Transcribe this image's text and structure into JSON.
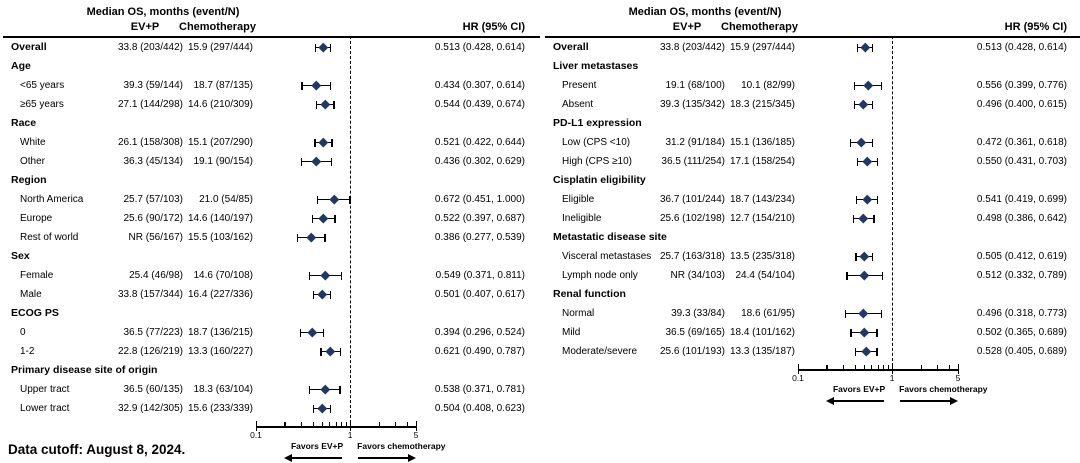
{
  "footer": "Data cutoff: August 8, 2024.",
  "columns": {
    "median_os_header": "Median OS, months (event/N)",
    "evp": "EV+P",
    "chemo": "Chemotherapy",
    "hr": "HR (95% CI)"
  },
  "colors": {
    "marker": "#1f3864",
    "ci_line": "#000000",
    "reference_line": "#000000",
    "text": "#000000"
  },
  "axis": {
    "scale": "log",
    "range": [
      0.1,
      5
    ],
    "major_ticks": [
      0.1,
      1,
      5
    ],
    "tick_labels": [
      "0.1",
      "1",
      "5"
    ],
    "minor_ticks": [
      0.2,
      0.3,
      0.4,
      0.5,
      0.6,
      0.7,
      0.8,
      0.9,
      2,
      3,
      4
    ],
    "reference_value": 1,
    "favors_left": "Favors EV+P",
    "favors_right": "Favors chemotherapy"
  },
  "chart_data": [
    {
      "type": "forest",
      "panel": "left",
      "rows": [
        {
          "kind": "data",
          "bold": true,
          "label": "Overall",
          "evp": "33.8 (203/442)",
          "chemo": "15.9 (297/444)",
          "hr": 0.513,
          "lo": 0.428,
          "hi": 0.614
        },
        {
          "kind": "group",
          "label": "Age"
        },
        {
          "kind": "data",
          "label": "<65 years",
          "evp": "39.3 (59/144)",
          "chemo": "18.7 (87/135)",
          "hr": 0.434,
          "lo": 0.307,
          "hi": 0.614
        },
        {
          "kind": "data",
          "label": "≥65 years",
          "evp": "27.1 (144/298)",
          "chemo": "14.6 (210/309)",
          "hr": 0.544,
          "lo": 0.439,
          "hi": 0.674
        },
        {
          "kind": "group",
          "label": "Race"
        },
        {
          "kind": "data",
          "label": "White",
          "evp": "26.1 (158/308)",
          "chemo": "15.1 (207/290)",
          "hr": 0.521,
          "lo": 0.422,
          "hi": 0.644
        },
        {
          "kind": "data",
          "label": "Other",
          "evp": "36.3 (45/134)",
          "chemo": "19.1 (90/154)",
          "hr": 0.436,
          "lo": 0.302,
          "hi": 0.629
        },
        {
          "kind": "group",
          "label": "Region"
        },
        {
          "kind": "data",
          "label": "North America",
          "evp": "25.7 (57/103)",
          "chemo": "21.0 (54/85)",
          "hr": 0.672,
          "lo": 0.451,
          "hi": 1.0
        },
        {
          "kind": "data",
          "label": "Europe",
          "evp": "25.6 (90/172)",
          "chemo": "14.6 (140/197)",
          "hr": 0.522,
          "lo": 0.397,
          "hi": 0.687
        },
        {
          "kind": "data",
          "label": "Rest of world",
          "evp": "NR (56/167)",
          "chemo": "15.5 (103/162)",
          "hr": 0.386,
          "lo": 0.277,
          "hi": 0.539
        },
        {
          "kind": "group",
          "label": "Sex"
        },
        {
          "kind": "data",
          "label": "Female",
          "evp": "25.4 (46/98)",
          "chemo": "14.6 (70/108)",
          "hr": 0.549,
          "lo": 0.371,
          "hi": 0.811
        },
        {
          "kind": "data",
          "label": "Male",
          "evp": "33.8 (157/344)",
          "chemo": "16.4 (227/336)",
          "hr": 0.501,
          "lo": 0.407,
          "hi": 0.617
        },
        {
          "kind": "group",
          "label": "ECOG PS"
        },
        {
          "kind": "data",
          "label": "0",
          "evp": "36.5 (77/223)",
          "chemo": "18.7 (136/215)",
          "hr": 0.394,
          "lo": 0.296,
          "hi": 0.524
        },
        {
          "kind": "data",
          "label": "1-2",
          "evp": "22.8 (126/219)",
          "chemo": "13.3 (160/227)",
          "hr": 0.621,
          "lo": 0.49,
          "hi": 0.787
        },
        {
          "kind": "group",
          "label": "Primary disease site of origin"
        },
        {
          "kind": "data",
          "label": "Upper tract",
          "evp": "36.5 (60/135)",
          "chemo": "18.3 (63/104)",
          "hr": 0.538,
          "lo": 0.371,
          "hi": 0.781
        },
        {
          "kind": "data",
          "label": "Lower tract",
          "evp": "32.9 (142/305)",
          "chemo": "15.6 (233/339)",
          "hr": 0.504,
          "lo": 0.408,
          "hi": 0.623
        }
      ]
    },
    {
      "type": "forest",
      "panel": "right",
      "rows": [
        {
          "kind": "data",
          "bold": true,
          "label": "Overall",
          "evp": "33.8 (203/442)",
          "chemo": "15.9 (297/444)",
          "hr": 0.513,
          "lo": 0.428,
          "hi": 0.614
        },
        {
          "kind": "group",
          "label": "Liver metastases"
        },
        {
          "kind": "data",
          "label": "Present",
          "evp": "19.1 (68/100)",
          "chemo": "10.1 (82/99)",
          "hr": 0.556,
          "lo": 0.399,
          "hi": 0.776
        },
        {
          "kind": "data",
          "label": "Absent",
          "evp": "39.3 (135/342)",
          "chemo": "18.3 (215/345)",
          "hr": 0.496,
          "lo": 0.4,
          "hi": 0.615
        },
        {
          "kind": "group",
          "label": "PD-L1 expression"
        },
        {
          "kind": "data",
          "label": "Low (CPS <10)",
          "evp": "31.2 (91/184)",
          "chemo": "15.1 (136/185)",
          "hr": 0.472,
          "lo": 0.361,
          "hi": 0.618
        },
        {
          "kind": "data",
          "label": "High (CPS ≥10)",
          "evp": "36.5 (111/254)",
          "chemo": "17.1 (158/254)",
          "hr": 0.55,
          "lo": 0.431,
          "hi": 0.703
        },
        {
          "kind": "group",
          "label": "Cisplatin eligibility"
        },
        {
          "kind": "data",
          "label": "Eligible",
          "evp": "36.7 (101/244)",
          "chemo": "18.7 (143/234)",
          "hr": 0.541,
          "lo": 0.419,
          "hi": 0.699
        },
        {
          "kind": "data",
          "label": "Ineligible",
          "evp": "25.6 (102/198)",
          "chemo": "12.7 (154/210)",
          "hr": 0.498,
          "lo": 0.386,
          "hi": 0.642
        },
        {
          "kind": "group",
          "label": "Metastatic disease site"
        },
        {
          "kind": "data",
          "label": "Visceral metastases",
          "evp": "25.7 (163/318)",
          "chemo": "13.5 (235/318)",
          "hr": 0.505,
          "lo": 0.412,
          "hi": 0.619
        },
        {
          "kind": "data",
          "label": "Lymph node only",
          "evp": "NR (34/103)",
          "chemo": "24.4 (54/104)",
          "hr": 0.512,
          "lo": 0.332,
          "hi": 0.789
        },
        {
          "kind": "group",
          "label": "Renal function"
        },
        {
          "kind": "data",
          "label": "Normal",
          "evp": "39.3 (33/84)",
          "chemo": "18.6 (61/95)",
          "hr": 0.496,
          "lo": 0.318,
          "hi": 0.773
        },
        {
          "kind": "data",
          "label": "Mild",
          "evp": "36.5 (69/165)",
          "chemo": "18.4 (101/162)",
          "hr": 0.502,
          "lo": 0.365,
          "hi": 0.689
        },
        {
          "kind": "data",
          "label": "Moderate/severe",
          "evp": "25.6 (101/193)",
          "chemo": "13.3 (135/187)",
          "hr": 0.528,
          "lo": 0.405,
          "hi": 0.689
        }
      ]
    }
  ]
}
